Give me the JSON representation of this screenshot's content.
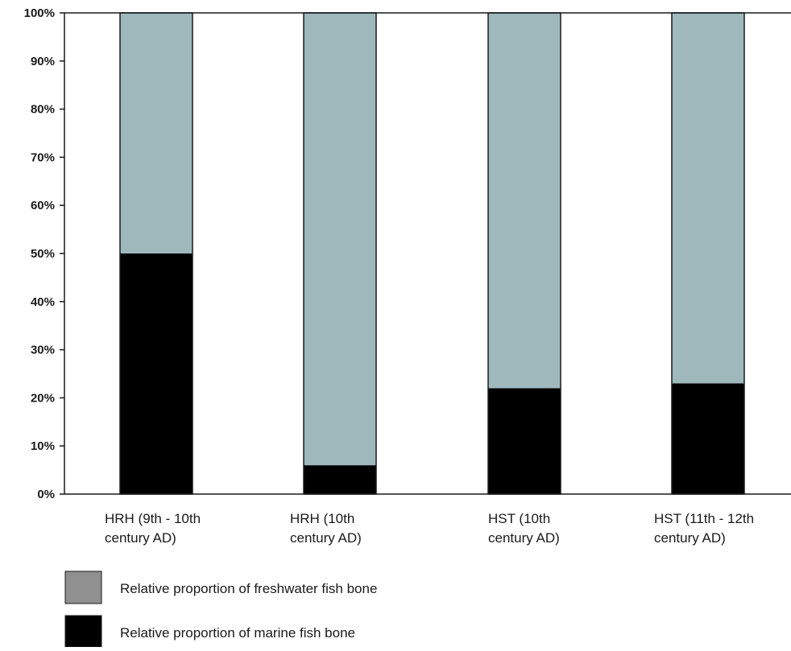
{
  "chart_data": {
    "type": "bar",
    "stacked": true,
    "percent": true,
    "categories": [
      [
        "HRH (9th - 10th",
        "century AD)"
      ],
      [
        "HRH (10th",
        "century AD)"
      ],
      [
        "HST (10th",
        "century AD)"
      ],
      [
        "HST (11th - 12th",
        "century AD)"
      ]
    ],
    "series": [
      {
        "name": "Relative proportion of marine fish bone",
        "values": [
          50,
          6,
          22,
          23
        ],
        "color": "#000000"
      },
      {
        "name": "Relative proportion of freshwater fish bone",
        "values": [
          50,
          94,
          78,
          77
        ],
        "color": "#9fb8bc"
      }
    ],
    "ylim": [
      0,
      100
    ],
    "yticks": [
      "0%",
      "10%",
      "20%",
      "30%",
      "40%",
      "50%",
      "60%",
      "70%",
      "80%",
      "90%",
      "100%"
    ],
    "legend": {
      "placement": "bottom-left",
      "entries": [
        {
          "label": "Relative proportion of freshwater fish bone",
          "color": "#9fb8bc"
        },
        {
          "label": "Relative proportion of marine fish bone",
          "color": "#000000"
        }
      ]
    },
    "grid": false
  }
}
